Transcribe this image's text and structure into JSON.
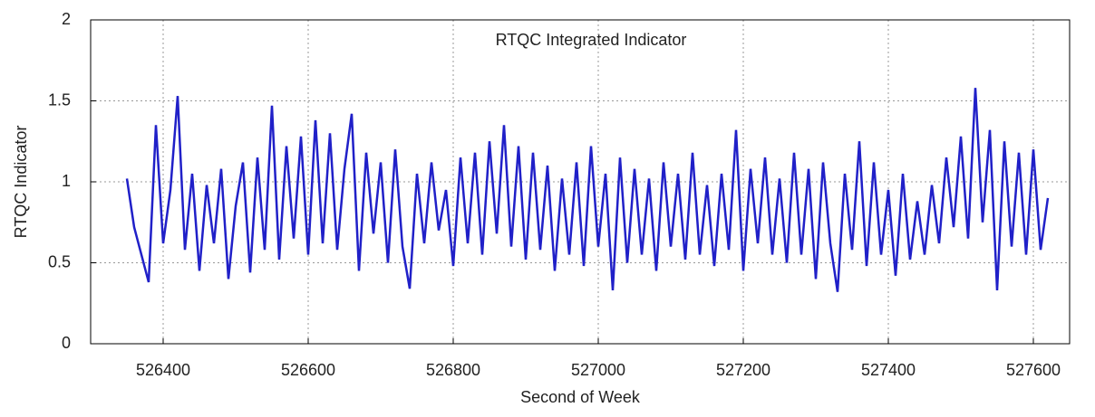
{
  "chart_data": {
    "type": "line",
    "title": "RTQC Integrated Indicator",
    "x_label": "Second of Week",
    "y_label": "RTQC Indicator",
    "x": [
      526350,
      526360,
      526370,
      526380,
      526390,
      526400,
      526410,
      526420,
      526430,
      526440,
      526450,
      526460,
      526470,
      526480,
      526490,
      526500,
      526510,
      526520,
      526530,
      526540,
      526550,
      526560,
      526570,
      526580,
      526590,
      526600,
      526610,
      526620,
      526630,
      526640,
      526650,
      526660,
      526670,
      526680,
      526690,
      526700,
      526710,
      526720,
      526730,
      526740,
      526750,
      526760,
      526770,
      526780,
      526790,
      526800,
      526810,
      526820,
      526830,
      526840,
      526850,
      526860,
      526870,
      526880,
      526890,
      526900,
      526910,
      526920,
      526930,
      526940,
      526950,
      526960,
      526970,
      526980,
      526990,
      527000,
      527010,
      527020,
      527030,
      527040,
      527050,
      527060,
      527070,
      527080,
      527090,
      527100,
      527110,
      527120,
      527130,
      527140,
      527150,
      527160,
      527170,
      527180,
      527190,
      527200,
      527210,
      527220,
      527230,
      527240,
      527250,
      527260,
      527270,
      527280,
      527290,
      527300,
      527310,
      527320,
      527330,
      527340,
      527350,
      527360,
      527370,
      527380,
      527390,
      527400,
      527410,
      527420,
      527430,
      527440,
      527450,
      527460,
      527470,
      527480,
      527490,
      527500,
      527510,
      527520,
      527530,
      527540,
      527550,
      527560,
      527570,
      527580,
      527590,
      527600,
      527610,
      527620
    ],
    "series": [
      {
        "name": "RTQC Indicator",
        "color": "#2020c8",
        "values": [
          1.02,
          0.72,
          0.55,
          0.38,
          1.35,
          0.62,
          0.95,
          1.53,
          0.58,
          1.05,
          0.45,
          0.98,
          0.62,
          1.08,
          0.4,
          0.85,
          1.12,
          0.44,
          1.15,
          0.58,
          1.47,
          0.52,
          1.22,
          0.65,
          1.28,
          0.55,
          1.38,
          0.62,
          1.3,
          0.58,
          1.08,
          1.42,
          0.45,
          1.18,
          0.68,
          1.12,
          0.5,
          1.2,
          0.6,
          0.34,
          1.05,
          0.62,
          1.12,
          0.7,
          0.95,
          0.48,
          1.15,
          0.62,
          1.18,
          0.55,
          1.25,
          0.68,
          1.35,
          0.6,
          1.22,
          0.52,
          1.18,
          0.58,
          1.1,
          0.45,
          1.02,
          0.55,
          1.12,
          0.48,
          1.22,
          0.6,
          1.05,
          0.33,
          1.15,
          0.5,
          1.08,
          0.55,
          1.02,
          0.45,
          1.12,
          0.6,
          1.05,
          0.52,
          1.18,
          0.55,
          0.98,
          0.48,
          1.05,
          0.58,
          1.32,
          0.45,
          1.08,
          0.62,
          1.15,
          0.55,
          1.02,
          0.5,
          1.18,
          0.55,
          1.08,
          0.4,
          1.12,
          0.62,
          0.32,
          1.05,
          0.58,
          1.25,
          0.48,
          1.12,
          0.55,
          0.95,
          0.42,
          1.05,
          0.52,
          0.88,
          0.55,
          0.98,
          0.62,
          1.15,
          0.72,
          1.28,
          0.65,
          1.58,
          0.75,
          1.32,
          0.33,
          1.25,
          0.6,
          1.18,
          0.55,
          1.2,
          0.58,
          0.9
        ]
      }
    ],
    "xlim": [
      526300,
      527650
    ],
    "xticks": [
      526400,
      526600,
      526800,
      527000,
      527200,
      527400,
      527600
    ],
    "ylim": [
      0,
      2
    ],
    "yticks": [
      0,
      0.5,
      1,
      1.5,
      2
    ],
    "grid": true
  }
}
